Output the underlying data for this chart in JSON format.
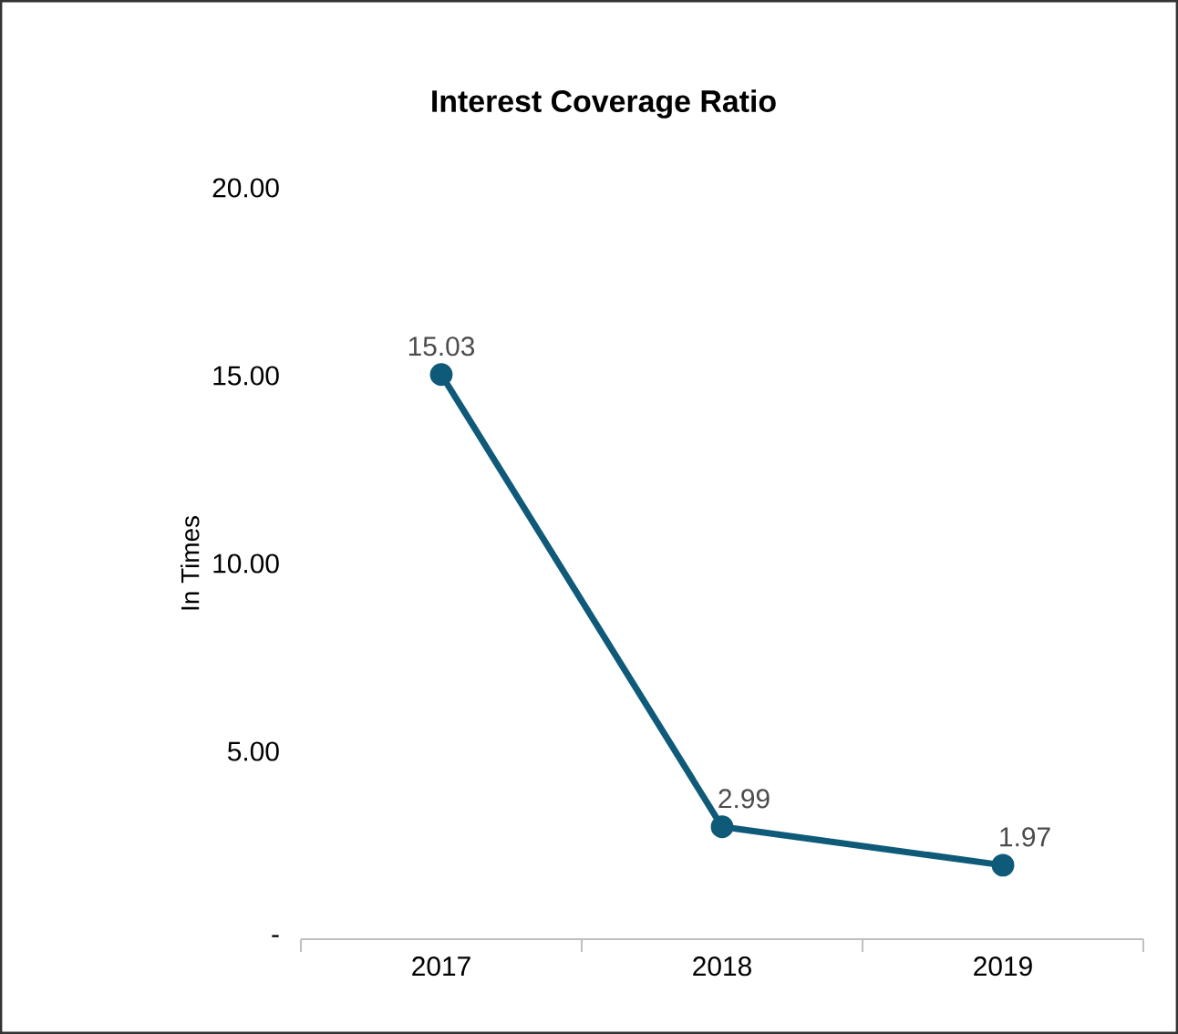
{
  "chart_data": {
    "type": "line",
    "title": "Interest Coverage Ratio",
    "ylabel": "In Times",
    "categories": [
      "2017",
      "2018",
      "2019"
    ],
    "series": [
      {
        "color": "#0e5a78",
        "values": [
          15.03,
          2.99,
          1.97
        ]
      }
    ],
    "ylim": [
      0,
      20
    ],
    "yticks": [
      {
        "value": 0,
        "label": "-"
      },
      {
        "value": 5,
        "label": "5.00"
      },
      {
        "value": 10,
        "label": "10.00"
      },
      {
        "value": 15,
        "label": "15.00"
      },
      {
        "value": 20,
        "label": "20.00"
      }
    ],
    "data_labels": true,
    "marker": "circle",
    "line_style": "solid",
    "grid": false
  }
}
